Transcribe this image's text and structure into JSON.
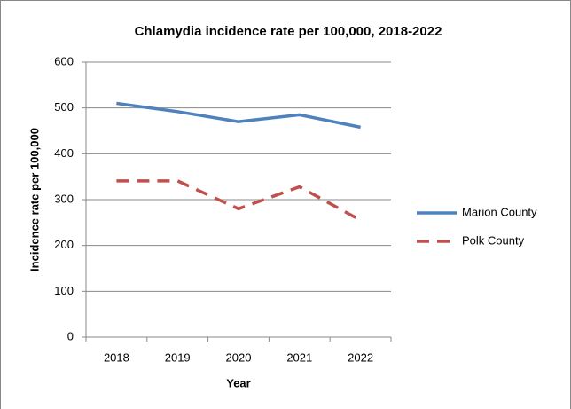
{
  "chart_data": {
    "type": "line",
    "title": "Chlamydia incidence rate per 100,000, 2018-2022",
    "x_label": "Year",
    "y_label": "Incidence rate per 100,000",
    "categories": [
      "2018",
      "2019",
      "2020",
      "2021",
      "2022"
    ],
    "series": [
      {
        "name": "Marion County",
        "color": "#4f81bd",
        "style": "solid",
        "values": [
          510,
          492,
          470,
          485,
          458
        ]
      },
      {
        "name": "Polk County",
        "color": "#c0504d",
        "style": "dashed",
        "values": [
          341,
          341,
          280,
          328,
          255
        ]
      }
    ],
    "ylim": [
      0,
      600
    ],
    "yticks": [
      0,
      100,
      200,
      300,
      400,
      500,
      600
    ],
    "grid": true,
    "legend": "right"
  }
}
